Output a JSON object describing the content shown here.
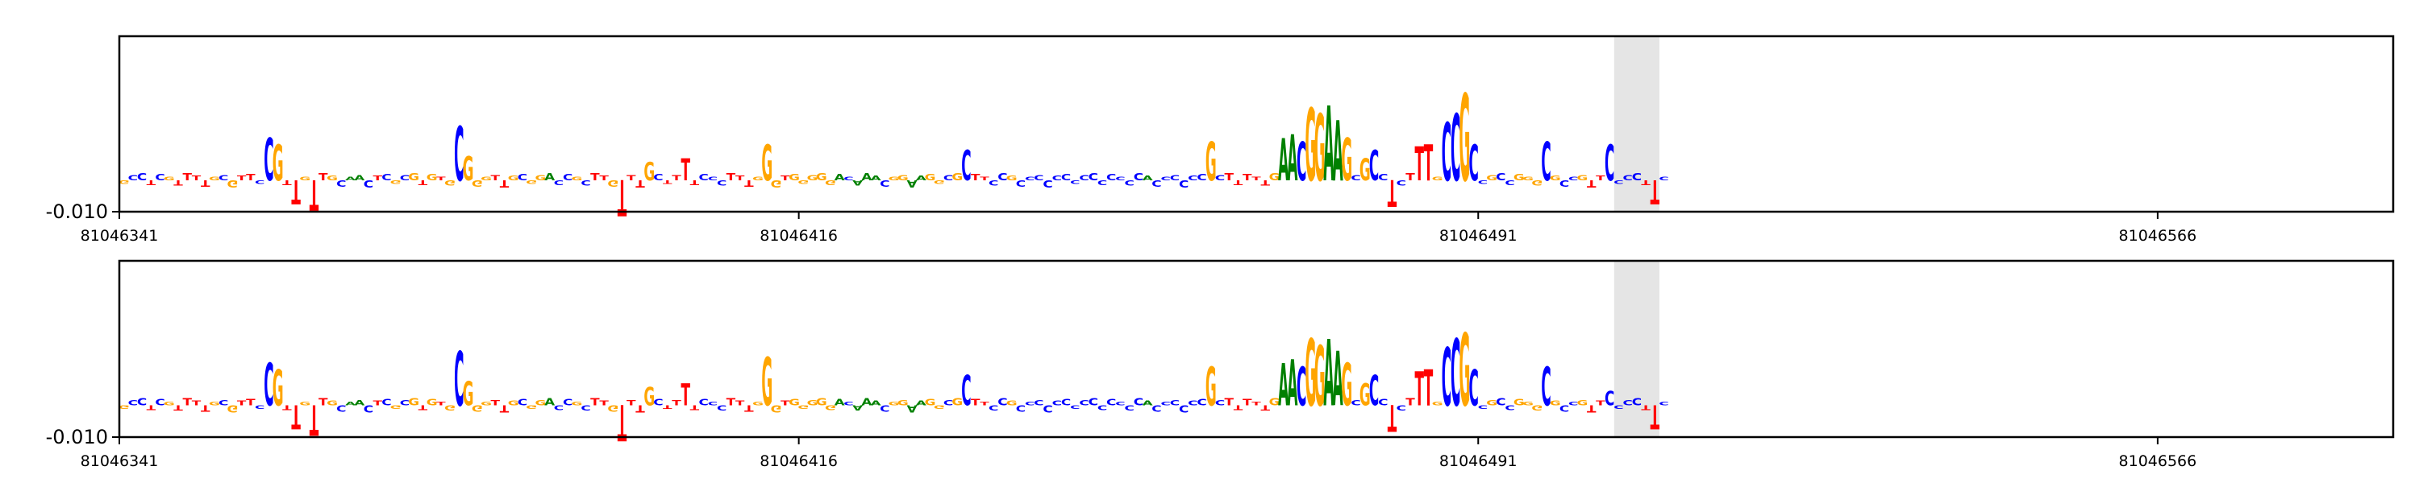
{
  "chart_data": [
    {
      "type": "sequence-logo",
      "title": "",
      "xlabel": "",
      "ylabel": "",
      "xlim": [
        81046341,
        81046592
      ],
      "ytick_labels": [
        "-0.010"
      ],
      "xtick_values": [
        81046341,
        81046416,
        81046491,
        81046566
      ],
      "xtick_labels": [
        "81046341",
        "81046416",
        "81046491",
        "81046566"
      ],
      "highlight_region": [
        81046506,
        81046511
      ],
      "grid": false,
      "legend": "none",
      "colors": {
        "A": "#008000",
        "C": "#0000ff",
        "G": "#ffa500",
        "T": "#ff0000",
        "highlight": "#e5e5e5"
      },
      "sequence": "GCCTCGTTTTGCGTTCTGTTGGTGCAACTCGCGTGTGGTGGTTGCGGACCGCTTGCTTGCTTCTCCCTTTGGGTGGGGGACAAACGGAAGGCGTTTCCGCCCCCCCCCCCCCCACCCCCCGCTTTTTGTTGGTGTTCGGCTCTGTGGCCCCGCCGGGAGCCGTTCCCCTCC",
      "peaks": [
        {
          "position": 81046357,
          "base": "C",
          "height": 0.35
        },
        {
          "position": 81046358,
          "base": "G",
          "height": 0.3
        },
        {
          "position": 81046360,
          "base": "T",
          "height": -0.2
        },
        {
          "position": 81046362,
          "base": "T",
          "height": -0.25
        },
        {
          "position": 81046378,
          "base": "C",
          "height": 0.45
        },
        {
          "position": 81046379,
          "base": "G",
          "height": 0.2
        },
        {
          "position": 81046396,
          "base": "T",
          "height": -0.3
        },
        {
          "position": 81046399,
          "base": "G",
          "height": 0.15
        },
        {
          "position": 81046403,
          "base": "T",
          "height": 0.18
        },
        {
          "position": 81046412,
          "base": "G",
          "height": 0.3
        },
        {
          "position": 81046434,
          "base": "C",
          "height": 0.25
        },
        {
          "position": 81046461,
          "base": "G",
          "height": 0.32
        },
        {
          "position": 81046469,
          "base": "A",
          "height": 0.35
        },
        {
          "position": 81046470,
          "base": "A",
          "height": 0.38
        },
        {
          "position": 81046471,
          "base": "C",
          "height": 0.32
        },
        {
          "position": 81046472,
          "base": "G",
          "height": 0.6
        },
        {
          "position": 81046473,
          "base": "G",
          "height": 0.55
        },
        {
          "position": 81046474,
          "base": "A",
          "height": 0.62
        },
        {
          "position": 81046475,
          "base": "A",
          "height": 0.5
        },
        {
          "position": 81046476,
          "base": "G",
          "height": 0.35
        },
        {
          "position": 81046478,
          "base": "G",
          "height": 0.18
        },
        {
          "position": 81046479,
          "base": "C",
          "height": 0.25
        },
        {
          "position": 81046481,
          "base": "T",
          "height": -0.22
        },
        {
          "position": 81046484,
          "base": "T",
          "height": 0.28
        },
        {
          "position": 81046485,
          "base": "T",
          "height": 0.3
        },
        {
          "position": 81046487,
          "base": "C",
          "height": 0.48
        },
        {
          "position": 81046488,
          "base": "C",
          "height": 0.55
        },
        {
          "position": 81046489,
          "base": "G",
          "height": 0.72
        },
        {
          "position": 81046490,
          "base": "C",
          "height": 0.3
        },
        {
          "position": 81046498,
          "base": "C",
          "height": 0.32
        },
        {
          "position": 81046505,
          "base": "C",
          "height": 0.3
        },
        {
          "position": 81046510,
          "base": "T",
          "height": -0.2
        },
        {
          "position": 81046513,
          "base": "G",
          "height": -0.2
        },
        {
          "position": 81046518,
          "base": "G",
          "height": 0.2
        },
        {
          "position": 81046529,
          "base": "G",
          "height": 0.25
        },
        {
          "position": 81046530,
          "base": "C",
          "height": 0.2
        },
        {
          "position": 81046531,
          "base": "T",
          "height": -0.22
        },
        {
          "position": 81046538,
          "base": "T",
          "height": -0.2
        },
        {
          "position": 81046541,
          "base": "G",
          "height": 0.15
        },
        {
          "position": 81046546,
          "base": "G",
          "height": 0.35
        },
        {
          "position": 81046548,
          "base": "G",
          "height": 0.25
        },
        {
          "position": 81046552,
          "base": "C",
          "height": 0.18
        },
        {
          "position": 81046561,
          "base": "G",
          "height": -0.2
        },
        {
          "position": 81046577,
          "base": "T",
          "height": 0.2
        },
        {
          "position": 81046582,
          "base": "C",
          "height": -0.18
        },
        {
          "position": 81046591,
          "base": "T",
          "height": -0.25
        }
      ]
    },
    {
      "type": "sequence-logo",
      "title": "",
      "xlabel": "",
      "ylabel": "",
      "xlim": [
        81046341,
        81046592
      ],
      "ytick_labels": [
        "-0.010"
      ],
      "xtick_values": [
        81046341,
        81046416,
        81046491,
        81046566
      ],
      "xtick_labels": [
        "81046341",
        "81046416",
        "81046491",
        "81046566"
      ],
      "highlight_region": [
        81046506,
        81046511
      ],
      "grid": false,
      "legend": "none",
      "colors": {
        "A": "#008000",
        "C": "#0000ff",
        "G": "#ffa500",
        "T": "#ff0000",
        "highlight": "#e5e5e5"
      },
      "sequence": "GCCTCGTTTTGCGTTCTGTTGGTGCAACTCGCGTGTGGTGGTTGCGGACCGCTTGCTTGCTTCTCCCTTTGGGTGGGGGACAAACGGAAGGCGTTTCCGCCCCCCCCCCCCCCACCCCCCGCTTTTTGTTGGTGTTCGGCTCTGTGGCCCCGCCGGGAGCCGTTCCCCTCC",
      "peaks": [
        {
          "position": 81046357,
          "base": "C",
          "height": 0.35
        },
        {
          "position": 81046358,
          "base": "G",
          "height": 0.3
        },
        {
          "position": 81046360,
          "base": "T",
          "height": -0.2
        },
        {
          "position": 81046362,
          "base": "T",
          "height": -0.25
        },
        {
          "position": 81046378,
          "base": "C",
          "height": 0.45
        },
        {
          "position": 81046379,
          "base": "G",
          "height": 0.2
        },
        {
          "position": 81046396,
          "base": "T",
          "height": -0.3
        },
        {
          "position": 81046399,
          "base": "G",
          "height": 0.15
        },
        {
          "position": 81046403,
          "base": "T",
          "height": 0.18
        },
        {
          "position": 81046412,
          "base": "G",
          "height": 0.4
        },
        {
          "position": 81046434,
          "base": "C",
          "height": 0.25
        },
        {
          "position": 81046461,
          "base": "G",
          "height": 0.32
        },
        {
          "position": 81046469,
          "base": "A",
          "height": 0.35
        },
        {
          "position": 81046470,
          "base": "A",
          "height": 0.38
        },
        {
          "position": 81046471,
          "base": "C",
          "height": 0.32
        },
        {
          "position": 81046472,
          "base": "G",
          "height": 0.55
        },
        {
          "position": 81046473,
          "base": "G",
          "height": 0.5
        },
        {
          "position": 81046474,
          "base": "A",
          "height": 0.55
        },
        {
          "position": 81046475,
          "base": "A",
          "height": 0.45
        },
        {
          "position": 81046476,
          "base": "G",
          "height": 0.35
        },
        {
          "position": 81046478,
          "base": "G",
          "height": 0.18
        },
        {
          "position": 81046479,
          "base": "C",
          "height": 0.25
        },
        {
          "position": 81046481,
          "base": "T",
          "height": -0.22
        },
        {
          "position": 81046484,
          "base": "T",
          "height": 0.28
        },
        {
          "position": 81046485,
          "base": "T",
          "height": 0.3
        },
        {
          "position": 81046487,
          "base": "C",
          "height": 0.48
        },
        {
          "position": 81046488,
          "base": "C",
          "height": 0.55
        },
        {
          "position": 81046489,
          "base": "G",
          "height": 0.6
        },
        {
          "position": 81046490,
          "base": "C",
          "height": 0.3
        },
        {
          "position": 81046498,
          "base": "C",
          "height": 0.32
        },
        {
          "position": 81046505,
          "base": "C",
          "height": 0.12
        },
        {
          "position": 81046510,
          "base": "T",
          "height": -0.2
        },
        {
          "position": 81046513,
          "base": "G",
          "height": -0.2
        },
        {
          "position": 81046518,
          "base": "G",
          "height": 0.2
        },
        {
          "position": 81046529,
          "base": "G",
          "height": 0.25
        },
        {
          "position": 81046530,
          "base": "C",
          "height": 0.2
        },
        {
          "position": 81046531,
          "base": "T",
          "height": -0.22
        },
        {
          "position": 81046538,
          "base": "T",
          "height": -0.2
        },
        {
          "position": 81046541,
          "base": "G",
          "height": 0.15
        },
        {
          "position": 81046546,
          "base": "G",
          "height": 0.35
        },
        {
          "position": 81046548,
          "base": "G",
          "height": 0.25
        },
        {
          "position": 81046552,
          "base": "C",
          "height": 0.18
        },
        {
          "position": 81046561,
          "base": "G",
          "height": -0.2
        },
        {
          "position": 81046577,
          "base": "T",
          "height": 0.2
        },
        {
          "position": 81046582,
          "base": "C",
          "height": -0.18
        },
        {
          "position": 81046591,
          "base": "T",
          "height": -0.25
        }
      ]
    }
  ]
}
